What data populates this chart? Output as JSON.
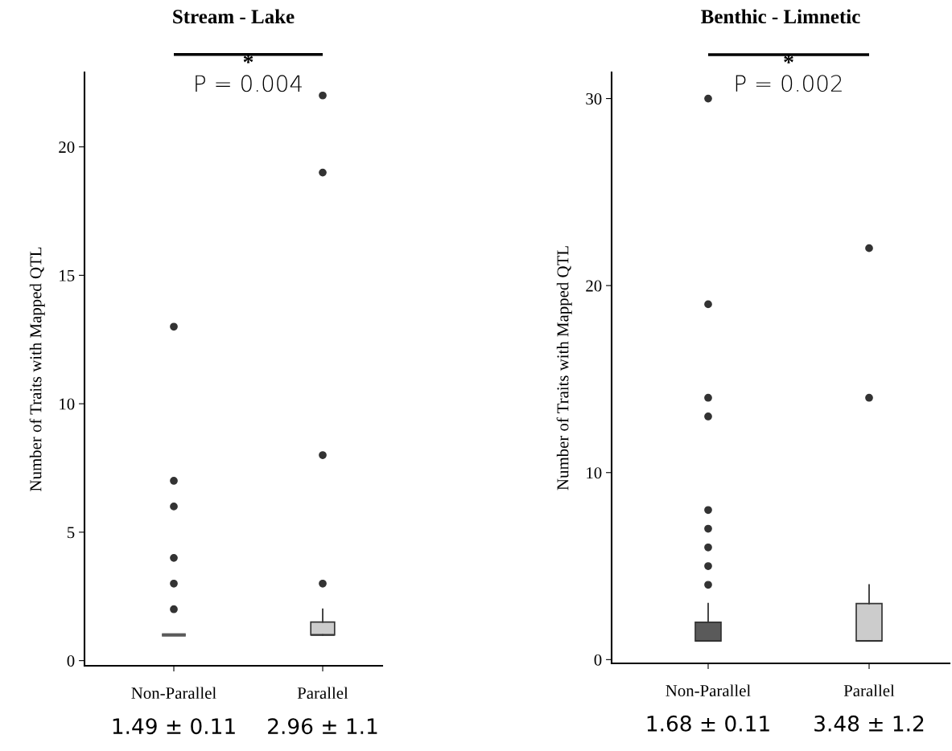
{
  "chart_data": [
    {
      "type": "box",
      "title": "Stream - Lake",
      "ylabel": "Number of Traits with Mapped QTL",
      "categories": [
        "Non-Parallel",
        "Parallel"
      ],
      "colors": [
        "#5a5a5a",
        "#cccccc"
      ],
      "boxes": [
        {
          "low": 1,
          "q1": 1,
          "median": 1,
          "q3": 1,
          "high": 1,
          "outliers": [
            2,
            3,
            4,
            6,
            7,
            13
          ]
        },
        {
          "low": 1,
          "q1": 1,
          "median": 1,
          "q3": 1.5,
          "high": 2,
          "outliers": [
            3,
            8,
            19,
            22
          ]
        }
      ],
      "ylim": [
        -0.2,
        22.9
      ],
      "yticks": [
        0,
        5,
        10,
        15,
        20
      ],
      "grid": false,
      "annotations": [
        "*",
        "P = 0.004",
        "1.49 ± 0.11",
        "2.96 ± 1.1"
      ]
    },
    {
      "type": "box",
      "title": "Benthic - Limnetic",
      "ylabel": "Number of Traits with Mapped QTL",
      "categories": [
        "Non-Parallel",
        "Parallel"
      ],
      "colors": [
        "#5a5a5a",
        "#cccccc"
      ],
      "boxes": [
        {
          "low": 1,
          "q1": 1,
          "median": 1,
          "q3": 2,
          "high": 3,
          "outliers": [
            4,
            5,
            6,
            7,
            8,
            13,
            14,
            19,
            30
          ]
        },
        {
          "low": 1,
          "q1": 1,
          "median": 1,
          "q3": 3,
          "high": 4,
          "outliers": [
            14,
            22
          ]
        }
      ],
      "ylim": [
        -0.2,
        31.4
      ],
      "yticks": [
        0,
        10,
        20,
        30
      ],
      "grid": false,
      "annotations": [
        "*",
        "P = 0.002",
        "1.68 ± 0.11",
        "3.48 ± 1.2"
      ]
    }
  ]
}
